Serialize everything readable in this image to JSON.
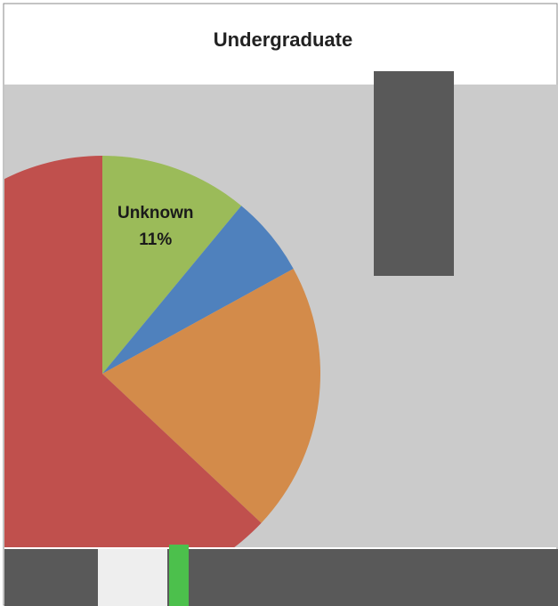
{
  "chart_data": {
    "type": "pie",
    "title": "Undergraduate",
    "categories": [
      "Unknown",
      null,
      null,
      null
    ],
    "values": [
      11,
      6,
      20,
      63
    ],
    "value_labels": [
      "11%",
      null,
      null,
      null
    ],
    "colors": [
      "#9bbb59",
      "#4f81bd",
      "#d38b4a",
      "#c0504d"
    ]
  }
}
